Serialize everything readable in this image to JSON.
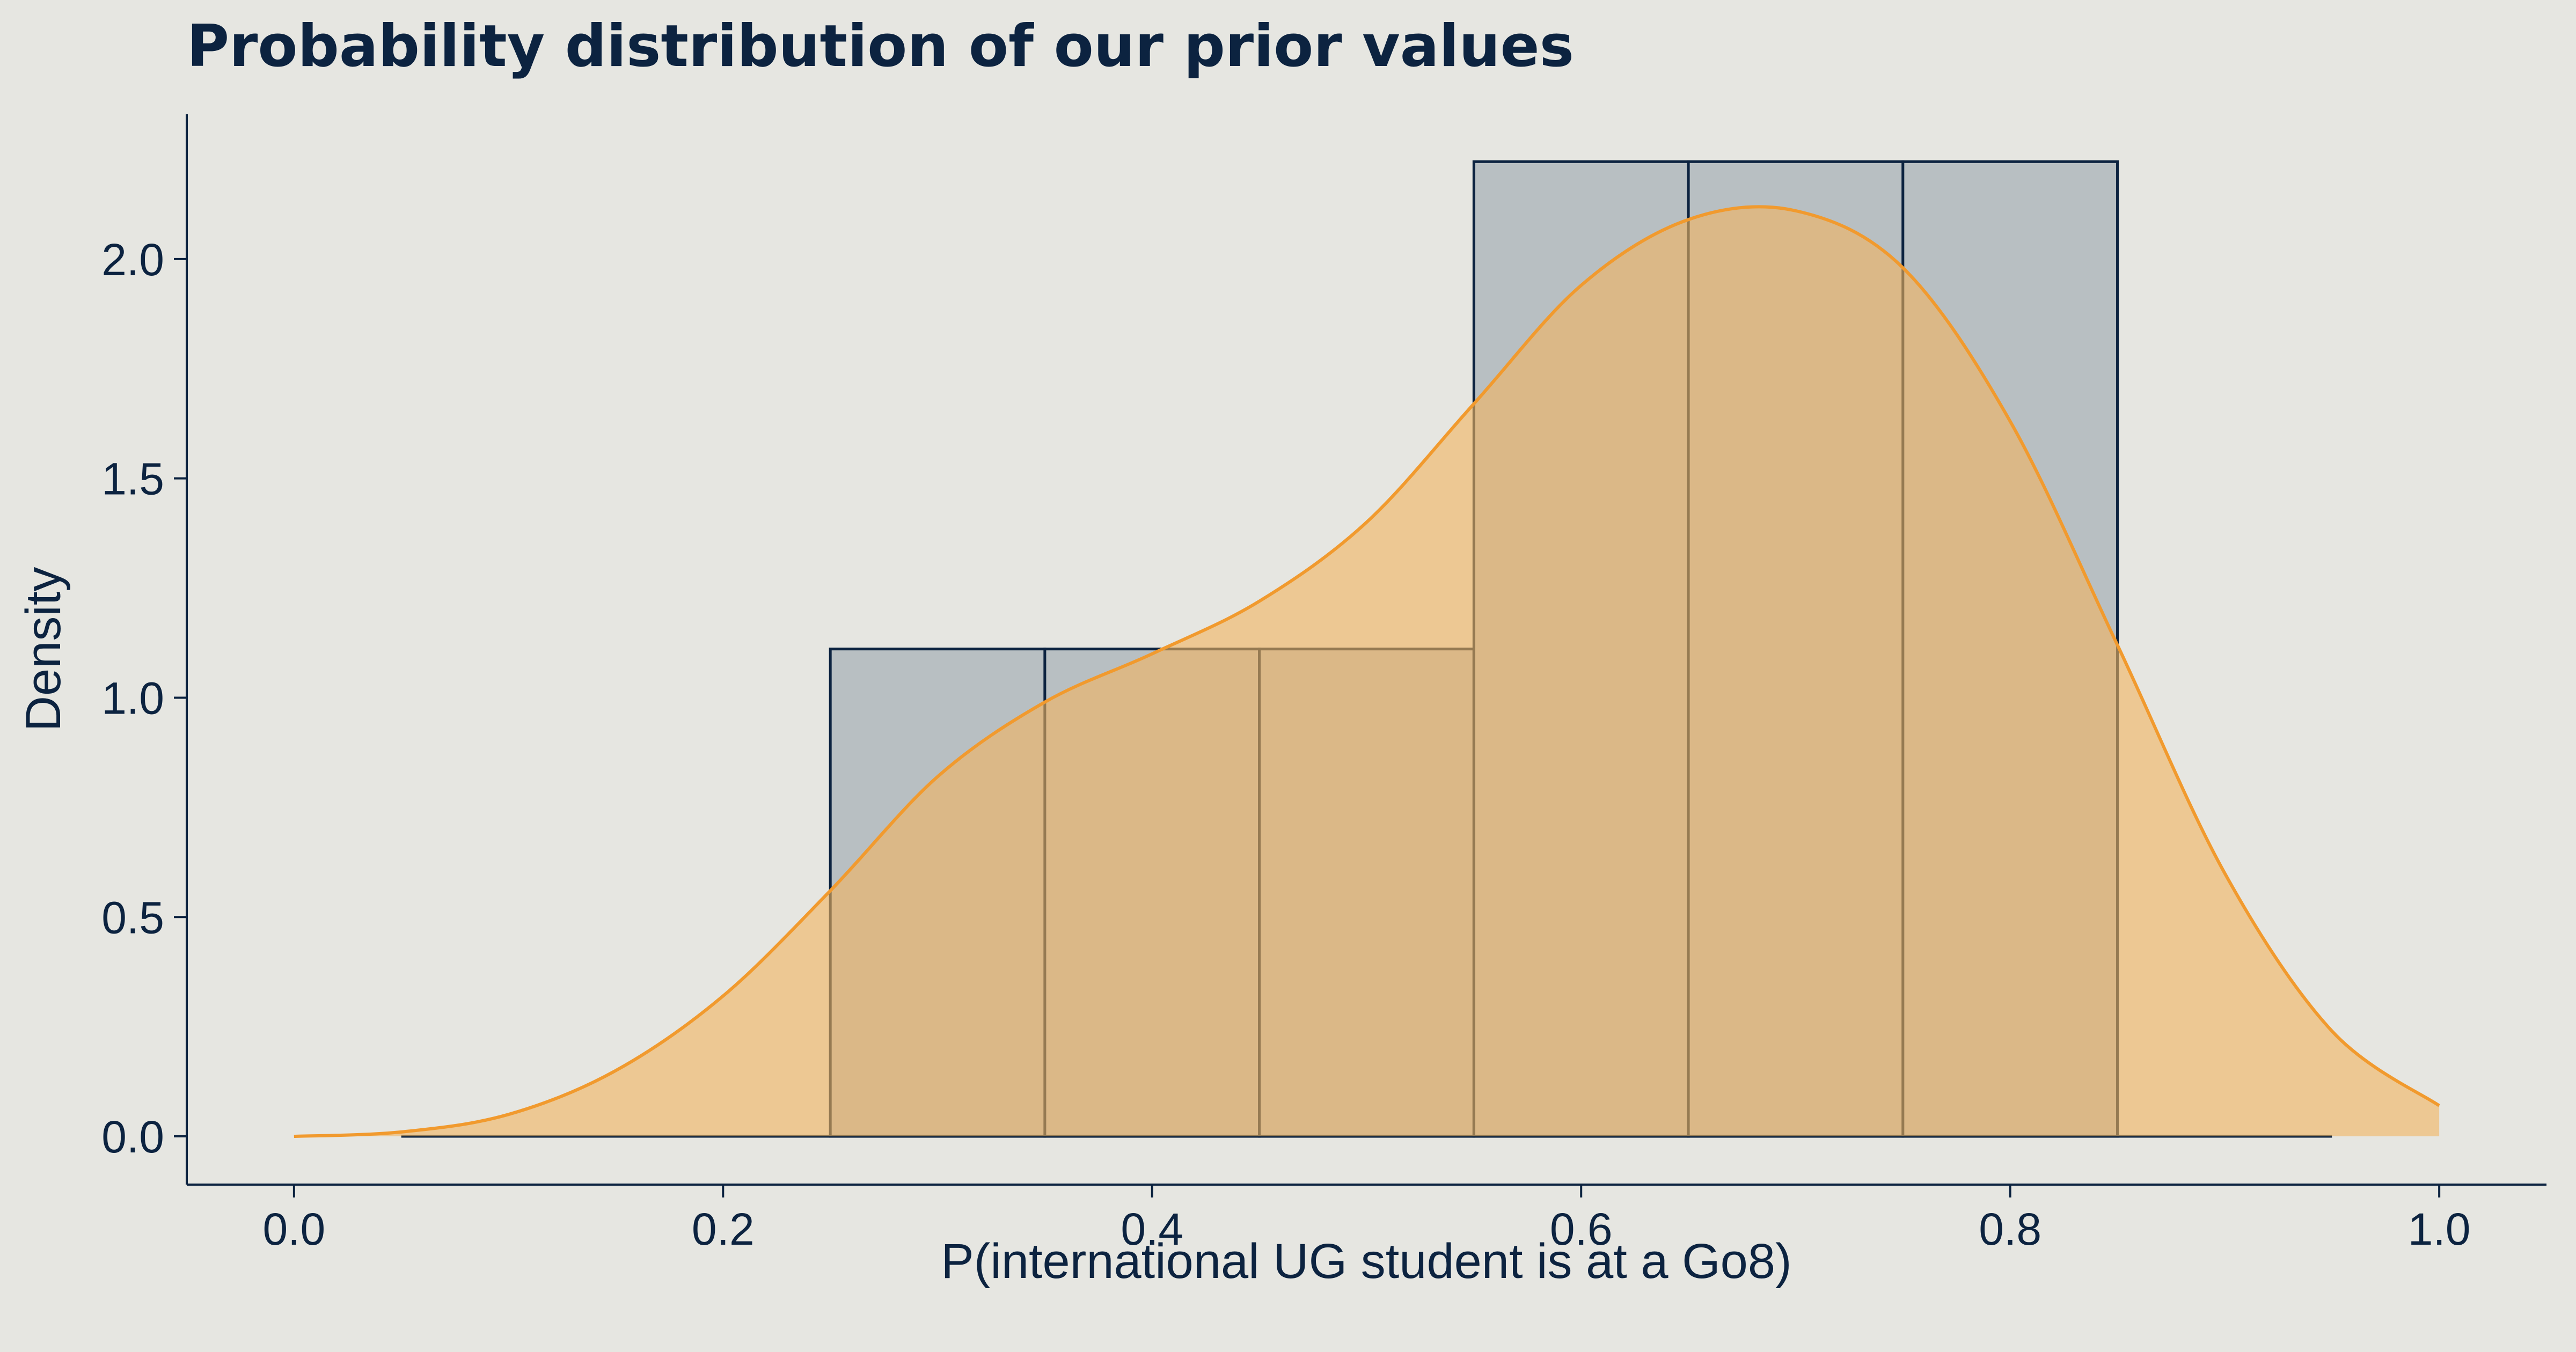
{
  "chart_data": {
    "type": "bar",
    "title": "Probability distribution of our prior values",
    "xlabel": "P(international UG student is at a Go8)",
    "ylabel": "Density",
    "xlim": [
      -0.05,
      1.05
    ],
    "ylim": [
      -0.11,
      2.33
    ],
    "x_ticks": [
      0.0,
      0.2,
      0.4,
      0.6,
      0.8,
      1.0
    ],
    "x_tick_labels": [
      "0.0",
      "0.2",
      "0.4",
      "0.6",
      "0.8",
      "1.0"
    ],
    "y_ticks": [
      0.0,
      0.5,
      1.0,
      1.5,
      2.0
    ],
    "y_tick_labels": [
      "0.0",
      "0.5",
      "1.0",
      "1.5",
      "2.0"
    ],
    "grid": false,
    "histogram": {
      "bin_edges": [
        0.05,
        0.15,
        0.25,
        0.35,
        0.45,
        0.55,
        0.65,
        0.75,
        0.85,
        0.95
      ],
      "densities": [
        0,
        0,
        1.111,
        1.111,
        1.111,
        2.222,
        2.222,
        2.222,
        0
      ],
      "fill_color": "#b8bfc2",
      "edge_color": "#0c2340"
    },
    "density_curve": {
      "x": [
        0.0,
        0.05,
        0.1,
        0.15,
        0.2,
        0.25,
        0.3,
        0.35,
        0.4,
        0.45,
        0.5,
        0.55,
        0.6,
        0.65,
        0.7,
        0.75,
        0.8,
        0.85,
        0.9,
        0.95,
        1.0
      ],
      "y": [
        0.0,
        0.01,
        0.05,
        0.15,
        0.32,
        0.56,
        0.82,
        0.99,
        1.1,
        1.22,
        1.4,
        1.67,
        1.94,
        2.09,
        2.11,
        1.98,
        1.63,
        1.12,
        0.6,
        0.24,
        0.07
      ],
      "line_color": "#f19a2e",
      "fill_color": "#f2b45f",
      "fill_opacity": 0.6
    }
  }
}
